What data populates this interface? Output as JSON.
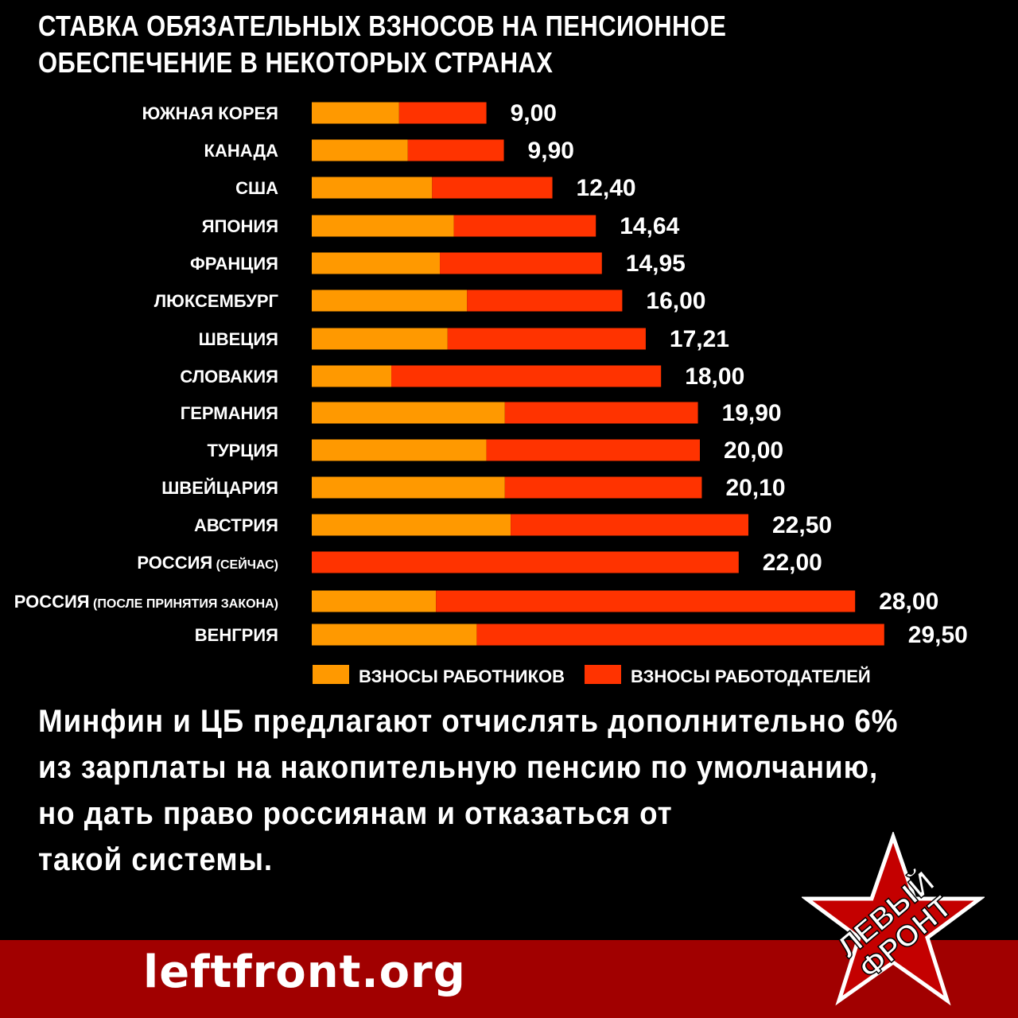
{
  "header": {
    "title_line1": "СТАВКА ОБЯЗАТЕЛЬНЫХ ВЗНОСОВ НА ПЕНСИОННОЕ",
    "title_line2": "ОБЕСПЕЧЕНИЕ В НЕКОТОРЫХ СТРАНАХ"
  },
  "chart_data": {
    "type": "bar",
    "orientation": "horizontal",
    "stacked": true,
    "categories": [
      [
        "ЮЖНАЯ КОРЕЯ",
        ""
      ],
      [
        "КАНАДА",
        ""
      ],
      [
        "США",
        ""
      ],
      [
        "ЯПОНИЯ",
        ""
      ],
      [
        "ФРАНЦИЯ",
        ""
      ],
      [
        "ЛЮКСЕМБУРГ",
        ""
      ],
      [
        "ШВЕЦИЯ",
        ""
      ],
      [
        "СЛОВАКИЯ",
        ""
      ],
      [
        "ГЕРМАНИЯ",
        ""
      ],
      [
        "ТУРЦИЯ",
        ""
      ],
      [
        "ШВЕЙЦАРИЯ",
        ""
      ],
      [
        "АВСТРИЯ",
        ""
      ],
      [
        "РОССИЯ",
        "(СЕЙЧАС)"
      ],
      [
        "РОССИЯ",
        "(ПОСЛЕ ПРИНЯТИЯ ЗАКОНА)"
      ],
      [
        "ВЕНГРИЯ",
        ""
      ]
    ],
    "series": [
      {
        "name": "ВЗНОСЫ РАБОТНИКОВ",
        "color": "#ff9900",
        "values": [
          4.5,
          4.95,
          6.2,
          7.32,
          6.6,
          8.0,
          7.0,
          4.1,
          9.95,
          9.0,
          9.95,
          10.25,
          0,
          6.4,
          8.5
        ]
      },
      {
        "name": "ВЗНОСЫ  РАБОТОДАТЕЛЕЙ",
        "color": "#ff3300",
        "values": [
          4.5,
          4.95,
          6.2,
          7.32,
          8.35,
          8.0,
          10.21,
          13.9,
          9.95,
          11.0,
          10.15,
          12.25,
          22.0,
          21.6,
          21.0
        ]
      }
    ],
    "totals": [
      9.0,
      9.9,
      12.4,
      14.64,
      14.95,
      16.0,
      17.21,
      18.0,
      19.9,
      20.0,
      20.1,
      22.5,
      22.0,
      28.0,
      29.5
    ],
    "total_labels": [
      "9,00",
      "9,90",
      "12,40",
      "14,64",
      "14,95",
      "16,00",
      "17,21",
      "18,00",
      "19,90",
      "20,00",
      "20,10",
      "22,50",
      "22,00",
      "28,00",
      "29,50"
    ],
    "xlim": [
      0,
      30
    ],
    "grid": false,
    "legend_position": "bottom"
  },
  "message": {
    "line1": "Минфин и ЦБ предлагают отчислять дополнительно 6%",
    "line2": "из зарплаты на накопительную пенсию по умолчанию,",
    "line3": "но дать право россиянам и отказаться от",
    "line4": "такой системы."
  },
  "footer": {
    "site": "leftfront.org",
    "logo_line1": "ЛЕВЫЙ",
    "logo_line2": "ФРОНТ"
  },
  "colors": {
    "background": "#000000",
    "employee": "#ff9900",
    "employer": "#ff3300",
    "footer_band": "#a10000",
    "logo_star": "#c40000"
  }
}
